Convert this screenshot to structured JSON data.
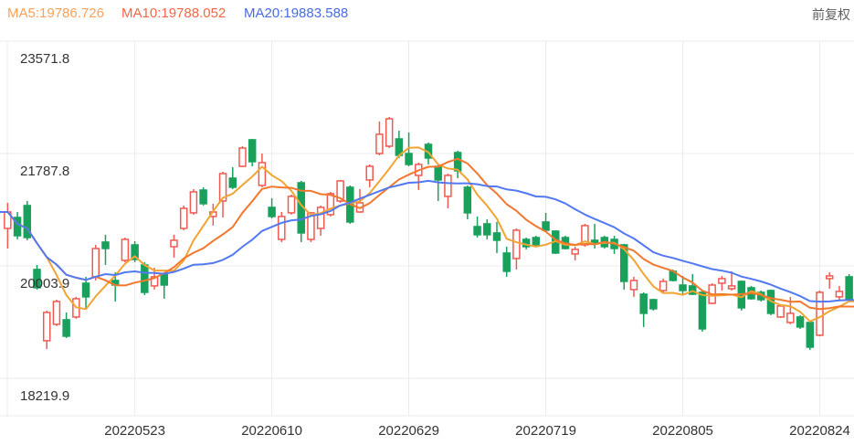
{
  "header": {
    "ma5_label": "MA5:19786.726",
    "ma10_label": "MA10:19788.052",
    "ma20_label": "MA20:19883.588",
    "adjust_label": "前复权",
    "ma5_color": "#FAA05A",
    "ma10_color": "#F4664A",
    "ma20_color": "#4A6BE0",
    "adjust_color": "#606060"
  },
  "chart_data": {
    "type": "candlestick",
    "legend": [
      "MA5",
      "MA10",
      "MA20"
    ],
    "grid": true,
    "grid_color": "#ebebeb",
    "axis_text_color": "#333333",
    "y_ticks": [
      {
        "label": "23571.8",
        "value": 23571.8
      },
      {
        "label": "21787.8",
        "value": 21787.8
      },
      {
        "label": "20003.9",
        "value": 20003.9
      },
      {
        "label": "18219.9",
        "value": 18219.9
      }
    ],
    "x_ticks": [
      {
        "label": "20220523",
        "candle_index": 13
      },
      {
        "label": "20220610",
        "candle_index": 27
      },
      {
        "label": "20220629",
        "candle_index": 41
      },
      {
        "label": "20220719",
        "candle_index": 55
      },
      {
        "label": "20220805",
        "candle_index": 69
      },
      {
        "label": "20220824",
        "candle_index": 83
      }
    ],
    "ylim": [
      18219.9,
      23571.8
    ],
    "up_color": "#EE5A52",
    "down_color": "#19A15C",
    "up_style": "hollow",
    "down_style": "solid",
    "ma_lines": [
      {
        "period": 5,
        "color": "#F2A433",
        "latest": 19786.726
      },
      {
        "period": 10,
        "color": "#F4772E",
        "latest": 19788.052
      },
      {
        "period": 20,
        "color": "#5279F2",
        "latest": 19883.588
      }
    ],
    "candle_format": "[open, close, low, high]",
    "candles": [
      [
        20599,
        20860,
        20280,
        21005
      ],
      [
        20773,
        20483,
        20425,
        20860
      ],
      [
        20962,
        20454,
        20411,
        21034
      ],
      [
        19947,
        19657,
        19628,
        20019
      ],
      [
        18816,
        19265,
        18685,
        19294
      ],
      [
        19077,
        19439,
        19048,
        19468
      ],
      [
        19149,
        18888,
        18859,
        19265
      ],
      [
        19193,
        19483,
        19164,
        19512
      ],
      [
        19729,
        19512,
        19323,
        19831
      ],
      [
        19831,
        20280,
        19773,
        20338
      ],
      [
        20382,
        20280,
        20019,
        20498
      ],
      [
        19773,
        19700,
        19439,
        19903
      ],
      [
        20092,
        20425,
        20063,
        20454
      ],
      [
        20338,
        20106,
        20063,
        20396
      ],
      [
        20019,
        19584,
        19541,
        20063
      ],
      [
        19686,
        19831,
        19628,
        19976
      ],
      [
        19874,
        19700,
        19483,
        19903
      ],
      [
        20309,
        20411,
        20135,
        20498
      ],
      [
        20599,
        20918,
        20570,
        20962
      ],
      [
        20846,
        21179,
        20817,
        21223
      ],
      [
        21208,
        20991,
        20962,
        21252
      ],
      [
        20788,
        20860,
        20643,
        20991
      ],
      [
        21034,
        21469,
        20773,
        21498
      ],
      [
        21397,
        21252,
        21223,
        21571
      ],
      [
        21585,
        21875,
        21571,
        21904
      ],
      [
        22006,
        21658,
        21585,
        22020
      ],
      [
        21281,
        21643,
        21252,
        21788
      ],
      [
        20933,
        20788,
        20759,
        21078
      ],
      [
        20425,
        20788,
        20382,
        20860
      ],
      [
        20846,
        21107,
        20817,
        21136
      ],
      [
        21324,
        20527,
        20382,
        21353
      ],
      [
        20425,
        20846,
        20382,
        20860
      ],
      [
        20599,
        20933,
        20483,
        20962
      ],
      [
        20817,
        21150,
        20788,
        21179
      ],
      [
        21034,
        21353,
        21005,
        21368
      ],
      [
        21252,
        20701,
        20672,
        21281
      ],
      [
        20860,
        21005,
        20846,
        21223
      ],
      [
        21368,
        21585,
        21252,
        21614
      ],
      [
        21788,
        22093,
        21759,
        22296
      ],
      [
        21904,
        22339,
        21875,
        22368
      ],
      [
        22020,
        21759,
        21716,
        22151
      ],
      [
        21788,
        21614,
        21585,
        22122
      ],
      [
        21440,
        21614,
        21208,
        21643
      ],
      [
        21933,
        21716,
        21614,
        21962
      ],
      [
        21585,
        21368,
        21034,
        21614
      ],
      [
        21107,
        21440,
        20918,
        21469
      ],
      [
        21803,
        21513,
        21397,
        21832
      ],
      [
        21252,
        20846,
        20744,
        21281
      ],
      [
        20628,
        20498,
        20454,
        20788
      ],
      [
        20672,
        20498,
        20425,
        20744
      ],
      [
        20527,
        20411,
        20208,
        20701
      ],
      [
        20208,
        19918,
        19831,
        20309
      ],
      [
        20121,
        20570,
        19947,
        20599
      ],
      [
        20425,
        20309,
        20266,
        20454
      ],
      [
        20454,
        20338,
        20309,
        20483
      ],
      [
        20701,
        20570,
        20556,
        20846
      ],
      [
        20556,
        20208,
        20193,
        20570
      ],
      [
        20454,
        20280,
        20266,
        20483
      ],
      [
        20193,
        20266,
        20092,
        20309
      ],
      [
        20338,
        20643,
        20309,
        20672
      ],
      [
        20411,
        20353,
        20280,
        20672
      ],
      [
        20454,
        20309,
        20280,
        20483
      ],
      [
        20425,
        20280,
        20193,
        20483
      ],
      [
        20338,
        19758,
        19628,
        20353
      ],
      [
        19628,
        19773,
        19512,
        19831
      ],
      [
        19555,
        19251,
        19034,
        19584
      ],
      [
        19468,
        19323,
        19294,
        19483
      ],
      [
        19613,
        19758,
        19584,
        19802
      ],
      [
        19918,
        19773,
        19758,
        19947
      ],
      [
        19700,
        19613,
        19541,
        19845
      ],
      [
        19686,
        19555,
        19541,
        19874
      ],
      [
        19584,
        19004,
        18961,
        19613
      ],
      [
        19410,
        19700,
        19396,
        19729
      ],
      [
        19729,
        19802,
        19613,
        19845
      ],
      [
        19642,
        19686,
        19613,
        19918
      ],
      [
        19758,
        19338,
        19294,
        19773
      ],
      [
        19657,
        19483,
        19468,
        19686
      ],
      [
        19584,
        19468,
        19439,
        19613
      ],
      [
        19613,
        19251,
        19222,
        19628
      ],
      [
        19193,
        19367,
        19178,
        19396
      ],
      [
        19106,
        19251,
        19077,
        19512
      ],
      [
        19193,
        19034,
        19004,
        19222
      ],
      [
        19106,
        18714,
        18671,
        19120
      ],
      [
        18903,
        19584,
        18888,
        19613
      ],
      [
        19802,
        19845,
        19642,
        19903
      ],
      [
        19512,
        19599,
        19468,
        19686
      ],
      [
        19831,
        19468,
        19425,
        19874
      ]
    ]
  }
}
